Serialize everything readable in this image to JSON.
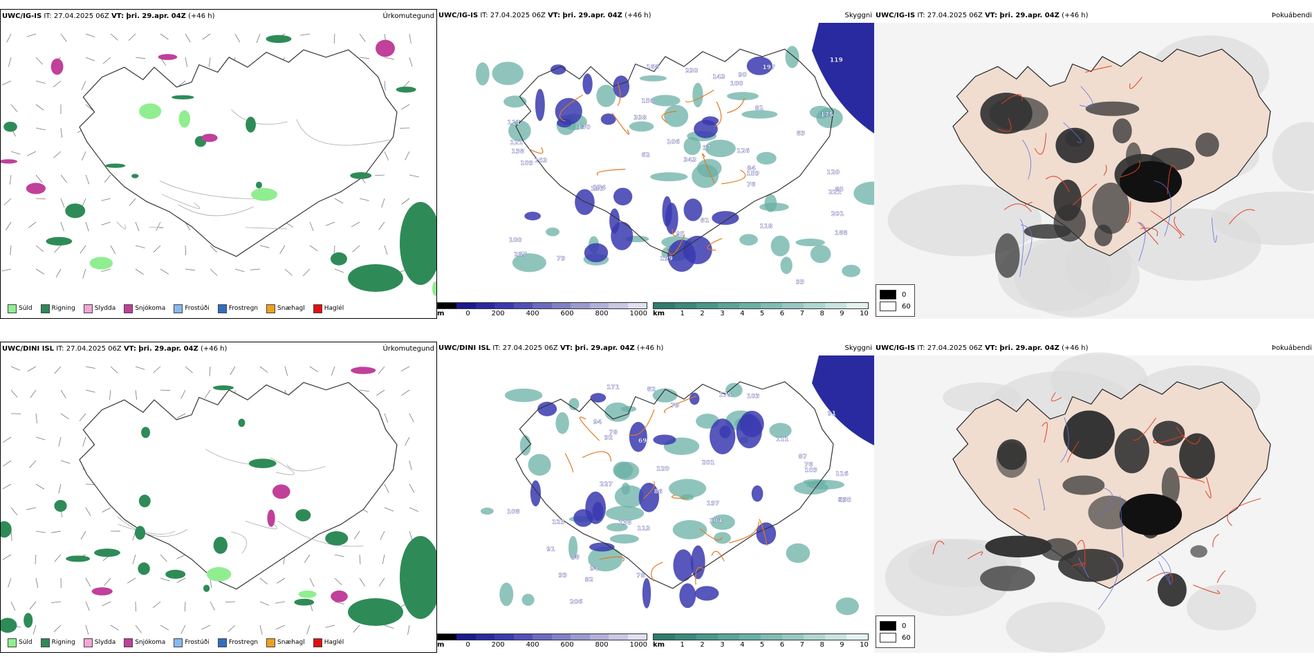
{
  "rows": [
    {
      "precip": {
        "title_model": "UWC/IG-IS",
        "title_it": "IT: 27.04.2025 06Z",
        "title_vt": "VT: þri. 29.apr. 04Z",
        "title_lead": "(+46 h)",
        "type": "Úrkomutegund"
      },
      "clouds": {
        "title_model": "UWC/IG-IS",
        "title_it": "IT: 27.04.2025 06Z",
        "title_vt": "VT: þri. 29.apr. 04Z",
        "title_lead": "(+46 h)",
        "type": "Skyggni",
        "labels": [
          "119",
          "168",
          "138",
          "159",
          "143",
          "287",
          "199",
          "90",
          "97",
          "343",
          "230",
          "121",
          "131",
          "106",
          "100",
          "85",
          "83",
          "93",
          "100",
          "111",
          "175",
          "76",
          "174",
          "130",
          "158",
          "120",
          "109",
          "168",
          "62",
          "197",
          "153",
          "201",
          "126",
          "118",
          "221",
          "79",
          "81",
          "84",
          "95",
          "338",
          "81"
        ]
      },
      "fog": {
        "title_model": "UWC/IG-IS",
        "title_it": "IT: 27.04.2025 06Z",
        "title_vt": "VT: þri. 29.apr. 04Z",
        "title_lead": "(+46 h)",
        "type": "Þokuábendi"
      }
    },
    {
      "precip": {
        "title_model": "UWC/DINI ISL",
        "title_it": "IT: 27.04.2025 06Z",
        "title_vt": "VT: þri. 29.apr. 04Z",
        "title_lead": "(+46 h)",
        "type": "Úrkomutegund"
      },
      "clouds": {
        "title_model": "UWC/DINI ISL",
        "title_it": "IT: 27.04.2025 06Z",
        "title_vt": "VT: þri. 29.apr. 04Z",
        "title_lead": "(+46 h)",
        "type": "Skyggni",
        "labels": [
          "116",
          "105",
          "175",
          "79",
          "87",
          "94",
          "86",
          "92",
          "88",
          "99",
          "104",
          "111",
          "67",
          "91",
          "113",
          "82",
          "206",
          "78",
          "94",
          "123",
          "76",
          "78",
          "171",
          "120",
          "91",
          "108",
          "238",
          "227",
          "197",
          "103",
          "103",
          "69",
          "82",
          "201"
        ]
      },
      "fog": {
        "title_model": "UWC/IG-IS",
        "title_it": "IT: 27.04.2025 06Z",
        "title_vt": "VT: þri. 29.apr. 04Z",
        "title_lead": "(+46 h)",
        "type": "Þokuábendi"
      }
    }
  ],
  "precip_legend": [
    {
      "label": "Súld",
      "color": "#90ee90"
    },
    {
      "label": "Rigning",
      "color": "#2e8b57"
    },
    {
      "label": "Slydda",
      "color": "#f4a6d7"
    },
    {
      "label": "Snjókoma",
      "color": "#c0409a"
    },
    {
      "label": "Frostúði",
      "color": "#87b9f0"
    },
    {
      "label": "Frostregn",
      "color": "#2f6fc0"
    },
    {
      "label": "Snæhagl",
      "color": "#f0a020"
    },
    {
      "label": "Haglél",
      "color": "#e01010"
    }
  ],
  "cloudbase_legend": {
    "unit": "m",
    "ticks": [
      "0",
      "200",
      "400",
      "600",
      "800",
      "1000"
    ],
    "colors": [
      "#000000",
      "#1a1a8c",
      "#2a2aa0",
      "#3a3ab0",
      "#5050b8",
      "#6a6ac0",
      "#8080c8",
      "#9a9ad0",
      "#b0b0da",
      "#c8c8e4",
      "#e0e0f0"
    ]
  },
  "visibility_legend": {
    "unit": "km",
    "ticks": [
      "1",
      "2",
      "3",
      "4",
      "5",
      "6",
      "7",
      "8",
      "9",
      "10"
    ],
    "colors": [
      "#2e7d6e",
      "#3a8a7c",
      "#4a978a",
      "#5aa498",
      "#6ab0a6",
      "#80bcb4",
      "#98c8c2",
      "#b0d6d0",
      "#c8e4e0",
      "#e4f2f0"
    ]
  },
  "fog_legend": [
    {
      "label": "0",
      "color": "#000000"
    },
    {
      "label": "60",
      "color": "#ffffff"
    }
  ]
}
